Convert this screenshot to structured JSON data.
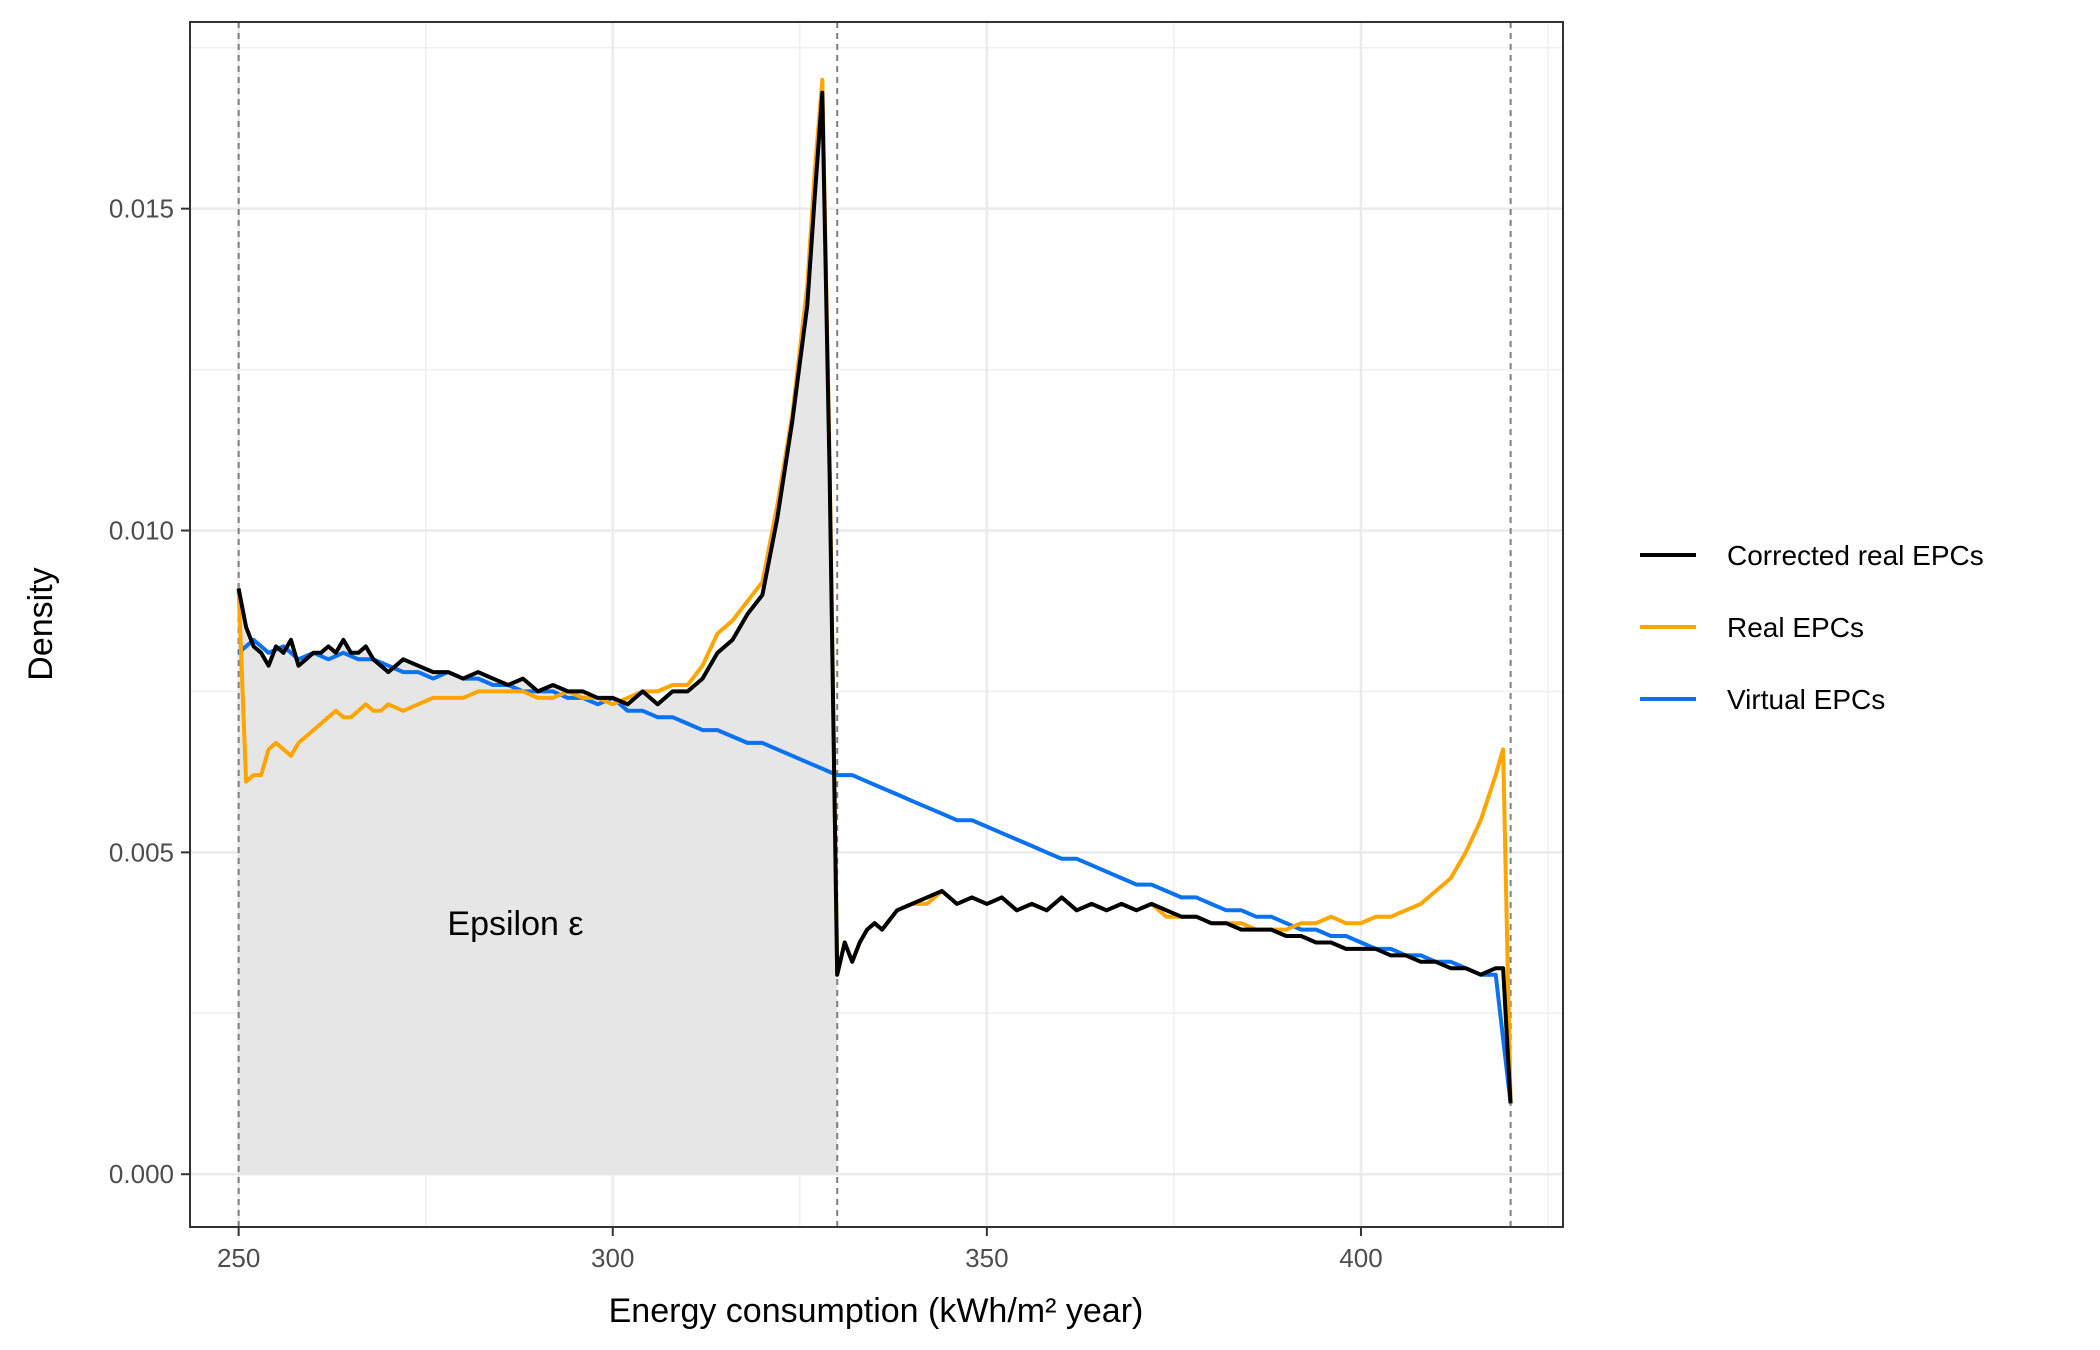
{
  "chart_data": {
    "type": "line",
    "xlabel": "Energy consumption (kWh/m² year)",
    "ylabel": "Density",
    "xlim": [
      243.5,
      427
    ],
    "ylim": [
      -0.00082,
      0.0179
    ],
    "xticks": [
      250,
      300,
      350,
      400
    ],
    "yticks": [
      "0.000",
      "0.005",
      "0.010",
      "0.015"
    ],
    "ytick_values": [
      0.0,
      0.005,
      0.01,
      0.015
    ],
    "grid": true,
    "legend_position": "right",
    "vlines": [
      250,
      330,
      420
    ],
    "annotation": {
      "text": "Epsilon ε",
      "x": 287,
      "y": 0.0039
    },
    "shaded_area": {
      "under_series": "Corrected real EPCs",
      "x_from": 250,
      "x_to": 330
    },
    "colors": {
      "corrected": "#000000",
      "real": "#FFA500",
      "virtual": "#0A72F0"
    },
    "series": [
      {
        "name": "Corrected real EPCs",
        "color": "#000000",
        "x": [
          250,
          251,
          252,
          253,
          254,
          255,
          256,
          257,
          258,
          259,
          260,
          261,
          262,
          263,
          264,
          265,
          266,
          267,
          268,
          269,
          270,
          272,
          274,
          276,
          278,
          280,
          282,
          284,
          286,
          288,
          290,
          292,
          294,
          296,
          298,
          300,
          302,
          304,
          306,
          308,
          310,
          312,
          314,
          316,
          318,
          320,
          322,
          324,
          326,
          327,
          328,
          329,
          330,
          331,
          332,
          333,
          334,
          335,
          336,
          338,
          340,
          342,
          344,
          346,
          348,
          350,
          352,
          354,
          356,
          358,
          360,
          362,
          364,
          366,
          368,
          370,
          372,
          374,
          376,
          378,
          380,
          382,
          384,
          386,
          388,
          390,
          392,
          394,
          396,
          398,
          400,
          402,
          404,
          406,
          408,
          410,
          412,
          414,
          416,
          418,
          419,
          420
        ],
        "y": [
          0.0091,
          0.0085,
          0.0082,
          0.0081,
          0.0079,
          0.0082,
          0.0081,
          0.0083,
          0.0079,
          0.008,
          0.0081,
          0.0081,
          0.0082,
          0.0081,
          0.0083,
          0.0081,
          0.0081,
          0.0082,
          0.008,
          0.0079,
          0.0078,
          0.008,
          0.0079,
          0.0078,
          0.0078,
          0.0077,
          0.0078,
          0.0077,
          0.0076,
          0.0077,
          0.0075,
          0.0076,
          0.0075,
          0.0075,
          0.0074,
          0.0074,
          0.0073,
          0.0075,
          0.0073,
          0.0075,
          0.0075,
          0.0077,
          0.0081,
          0.0083,
          0.0087,
          0.009,
          0.0102,
          0.0117,
          0.0135,
          0.0152,
          0.0168,
          0.0108,
          0.0031,
          0.0036,
          0.0033,
          0.0036,
          0.0038,
          0.0039,
          0.0038,
          0.0041,
          0.0042,
          0.0043,
          0.0044,
          0.0042,
          0.0043,
          0.0042,
          0.0043,
          0.0041,
          0.0042,
          0.0041,
          0.0043,
          0.0041,
          0.0042,
          0.0041,
          0.0042,
          0.0041,
          0.0042,
          0.0041,
          0.004,
          0.004,
          0.0039,
          0.0039,
          0.0038,
          0.0038,
          0.0038,
          0.0037,
          0.0037,
          0.0036,
          0.0036,
          0.0035,
          0.0035,
          0.0035,
          0.0034,
          0.0034,
          0.0033,
          0.0033,
          0.0032,
          0.0032,
          0.0031,
          0.0032,
          0.0032,
          0.0011
        ]
      },
      {
        "name": "Real EPCs",
        "color": "#FFA500",
        "x": [
          250,
          251,
          252,
          253,
          254,
          255,
          256,
          257,
          258,
          259,
          260,
          261,
          262,
          263,
          264,
          265,
          266,
          267,
          268,
          269,
          270,
          272,
          274,
          276,
          278,
          280,
          282,
          284,
          286,
          288,
          290,
          292,
          294,
          296,
          298,
          300,
          302,
          304,
          306,
          308,
          310,
          312,
          314,
          316,
          318,
          320,
          322,
          324,
          326,
          327,
          328,
          329,
          330,
          331,
          332,
          333,
          334,
          335,
          336,
          338,
          340,
          342,
          344,
          346,
          348,
          350,
          352,
          354,
          356,
          358,
          360,
          362,
          364,
          366,
          368,
          370,
          372,
          374,
          376,
          378,
          380,
          382,
          384,
          386,
          388,
          390,
          392,
          394,
          396,
          398,
          400,
          402,
          404,
          406,
          408,
          410,
          412,
          414,
          416,
          418,
          419,
          420
        ],
        "y": [
          0.0091,
          0.0061,
          0.0062,
          0.0062,
          0.0066,
          0.0067,
          0.0066,
          0.0065,
          0.0067,
          0.0068,
          0.0069,
          0.007,
          0.0071,
          0.0072,
          0.0071,
          0.0071,
          0.0072,
          0.0073,
          0.0072,
          0.0072,
          0.0073,
          0.0072,
          0.0073,
          0.0074,
          0.0074,
          0.0074,
          0.0075,
          0.0075,
          0.0075,
          0.0075,
          0.0074,
          0.0074,
          0.0075,
          0.0074,
          0.0074,
          0.0073,
          0.0074,
          0.0075,
          0.0075,
          0.0076,
          0.0076,
          0.0079,
          0.0084,
          0.0086,
          0.0089,
          0.0092,
          0.0104,
          0.0118,
          0.0138,
          0.0156,
          0.017,
          0.011,
          0.0031,
          0.0036,
          0.0033,
          0.0036,
          0.0038,
          0.0039,
          0.0038,
          0.0041,
          0.0042,
          0.0042,
          0.0044,
          0.0042,
          0.0043,
          0.0042,
          0.0043,
          0.0041,
          0.0042,
          0.0041,
          0.0043,
          0.0041,
          0.0042,
          0.0041,
          0.0042,
          0.0041,
          0.0042,
          0.004,
          0.004,
          0.004,
          0.0039,
          0.0039,
          0.0039,
          0.0038,
          0.0038,
          0.0038,
          0.0039,
          0.0039,
          0.004,
          0.0039,
          0.0039,
          0.004,
          0.004,
          0.0041,
          0.0042,
          0.0044,
          0.0046,
          0.005,
          0.0055,
          0.0062,
          0.0066,
          0.0011
        ]
      },
      {
        "name": "Virtual EPCs",
        "color": "#0A72F0",
        "x": [
          250,
          252,
          254,
          256,
          258,
          260,
          262,
          264,
          266,
          268,
          270,
          272,
          274,
          276,
          278,
          280,
          282,
          284,
          286,
          288,
          290,
          292,
          294,
          296,
          298,
          300,
          302,
          304,
          306,
          308,
          310,
          312,
          314,
          316,
          318,
          320,
          322,
          324,
          326,
          328,
          330,
          332,
          334,
          336,
          338,
          340,
          342,
          344,
          346,
          348,
          350,
          352,
          354,
          356,
          358,
          360,
          362,
          364,
          366,
          368,
          370,
          372,
          374,
          376,
          378,
          380,
          382,
          384,
          386,
          388,
          390,
          392,
          394,
          396,
          398,
          400,
          402,
          404,
          406,
          408,
          410,
          412,
          414,
          416,
          418,
          420
        ],
        "y": [
          0.0081,
          0.0083,
          0.0081,
          0.0082,
          0.008,
          0.0081,
          0.008,
          0.0081,
          0.008,
          0.008,
          0.0079,
          0.0078,
          0.0078,
          0.0077,
          0.0078,
          0.0077,
          0.0077,
          0.0076,
          0.0076,
          0.0075,
          0.0075,
          0.0075,
          0.0074,
          0.0074,
          0.0073,
          0.0074,
          0.0072,
          0.0072,
          0.0071,
          0.0071,
          0.007,
          0.0069,
          0.0069,
          0.0068,
          0.0067,
          0.0067,
          0.0066,
          0.0065,
          0.0064,
          0.0063,
          0.0062,
          0.0062,
          0.0061,
          0.006,
          0.0059,
          0.0058,
          0.0057,
          0.0056,
          0.0055,
          0.0055,
          0.0054,
          0.0053,
          0.0052,
          0.0051,
          0.005,
          0.0049,
          0.0049,
          0.0048,
          0.0047,
          0.0046,
          0.0045,
          0.0045,
          0.0044,
          0.0043,
          0.0043,
          0.0042,
          0.0041,
          0.0041,
          0.004,
          0.004,
          0.0039,
          0.0038,
          0.0038,
          0.0037,
          0.0037,
          0.0036,
          0.0035,
          0.0035,
          0.0034,
          0.0034,
          0.0033,
          0.0033,
          0.0032,
          0.0031,
          0.0031,
          0.0011
        ]
      }
    ]
  }
}
